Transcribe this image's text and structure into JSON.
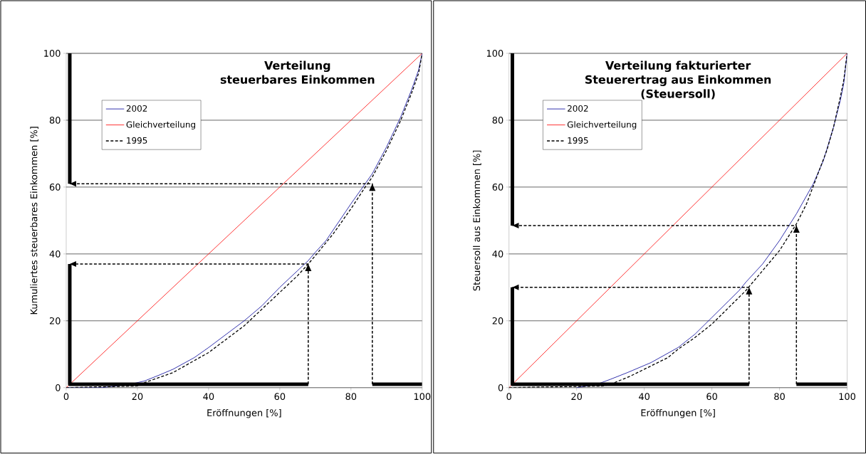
{
  "chart_data": [
    {
      "type": "line",
      "title": "Verteilung\nsteuerbares Einkommen",
      "xlabel": "Eröffnungen [%]",
      "ylabel": "Kumuliertes steuerbares Einkommen [%]",
      "xlim": [
        0,
        100
      ],
      "ylim": [
        0,
        100
      ],
      "xticks": [
        0,
        20,
        40,
        60,
        80,
        100
      ],
      "yticks": [
        0,
        20,
        40,
        60,
        80,
        100
      ],
      "grid": "y",
      "legend": "top left",
      "series": [
        {
          "name": "2002",
          "color": "#000099",
          "line_style": "solid",
          "x": [
            0,
            10,
            18,
            22,
            26,
            30,
            36,
            40,
            45,
            50,
            55,
            60,
            65,
            68,
            70,
            73,
            80,
            84,
            86,
            90,
            94,
            97,
            99,
            100
          ],
          "values": [
            0,
            0,
            1,
            2,
            3.7,
            5.5,
            9,
            12,
            16,
            20,
            24.5,
            30,
            35,
            38,
            40.5,
            44,
            55,
            61,
            64,
            72,
            81,
            89,
            95,
            100
          ]
        },
        {
          "name": "Gleichverteilung",
          "color": "#ff0000",
          "line_style": "solid",
          "x": [
            0,
            100
          ],
          "values": [
            0,
            100
          ]
        },
        {
          "name": "1995",
          "color": "#000000",
          "line_style": "dashed",
          "x": [
            0,
            20,
            22,
            26,
            30,
            35,
            40,
            45,
            50,
            55,
            60,
            65,
            68,
            70,
            75,
            80,
            84,
            86,
            90,
            94,
            97,
            99,
            100
          ],
          "values": [
            0,
            0.5,
            1.5,
            3,
            4.5,
            7.5,
            10.5,
            14.5,
            18.5,
            23.5,
            28.5,
            33.5,
            37,
            39.5,
            46,
            53.5,
            60,
            63,
            71,
            80,
            88,
            94,
            100
          ]
        },
        {
          "color": "#000000",
          "line_style": "dashed",
          "x": [
            68,
            68,
            1
          ],
          "values": [
            1,
            37,
            37
          ]
        },
        {
          "color": "#000000",
          "line_style": "dashed",
          "x": [
            86,
            86,
            1
          ],
          "values": [
            1,
            61,
            61
          ]
        },
        {
          "color": "#000000",
          "line_style": "solid",
          "x": [
            68,
            1,
            1
          ],
          "values": [
            1,
            1,
            37
          ]
        },
        {
          "color": "#000000",
          "line_style": "solid",
          "x": [
            86,
            100
          ],
          "values": [
            1,
            1
          ]
        },
        {
          "color": "#000000",
          "line_style": "solid",
          "x": [
            1,
            1
          ],
          "values": [
            61,
            100
          ]
        }
      ]
    },
    {
      "type": "line",
      "title": "Verteilung fakturierter\nSteuerertrag aus Einkommen\n(Steuersoll)",
      "xlabel": "Eröffnungen [%]",
      "ylabel": "Steuersoll aus Einkommen [%]",
      "xlim": [
        0,
        100
      ],
      "ylim": [
        0,
        100
      ],
      "xticks": [
        0,
        20,
        40,
        60,
        80,
        100
      ],
      "yticks": [
        0,
        20,
        40,
        60,
        80,
        100
      ],
      "grid": "y",
      "legend": "top left",
      "series": [
        {
          "name": "2002",
          "color": "#000099",
          "line_style": "solid",
          "x": [
            20,
            26,
            30,
            35,
            42,
            50,
            55,
            60,
            65,
            68,
            70,
            75,
            80,
            85,
            90,
            93,
            96,
            98,
            99,
            100
          ],
          "values": [
            0,
            1,
            2.5,
            4.5,
            7.5,
            12,
            16,
            21,
            26,
            29,
            31.5,
            37,
            44,
            52,
            61,
            68,
            78,
            86,
            91,
            100
          ]
        },
        {
          "name": "Gleichverteilung",
          "color": "#ff0000",
          "line_style": "solid",
          "x": [
            0,
            100
          ],
          "values": [
            0,
            100
          ]
        },
        {
          "name": "1995",
          "color": "#000000",
          "line_style": "dashed",
          "x": [
            0,
            28,
            30,
            36,
            40,
            47,
            50,
            55,
            60,
            65,
            70,
            75,
            80,
            85,
            88,
            91,
            94,
            96,
            98,
            99,
            100
          ],
          "values": [
            0,
            0.5,
            1,
            3.5,
            5.5,
            9,
            11.5,
            15,
            19,
            24,
            29,
            35,
            41,
            49,
            55,
            63,
            71,
            78,
            87,
            92,
            100
          ]
        },
        {
          "color": "#000000",
          "line_style": "dashed",
          "x": [
            71,
            71,
            1
          ],
          "values": [
            1,
            30,
            30
          ]
        },
        {
          "color": "#000000",
          "line_style": "dashed",
          "x": [
            85,
            85,
            1
          ],
          "values": [
            1,
            48.5,
            48.5
          ]
        },
        {
          "color": "#000000",
          "line_style": "solid",
          "x": [
            71,
            1,
            1
          ],
          "values": [
            1,
            1,
            30
          ]
        },
        {
          "color": "#000000",
          "line_style": "solid",
          "x": [
            85,
            100
          ],
          "values": [
            1,
            1
          ]
        },
        {
          "color": "#000000",
          "line_style": "solid",
          "x": [
            1,
            1
          ],
          "values": [
            48.5,
            100
          ]
        }
      ]
    }
  ]
}
